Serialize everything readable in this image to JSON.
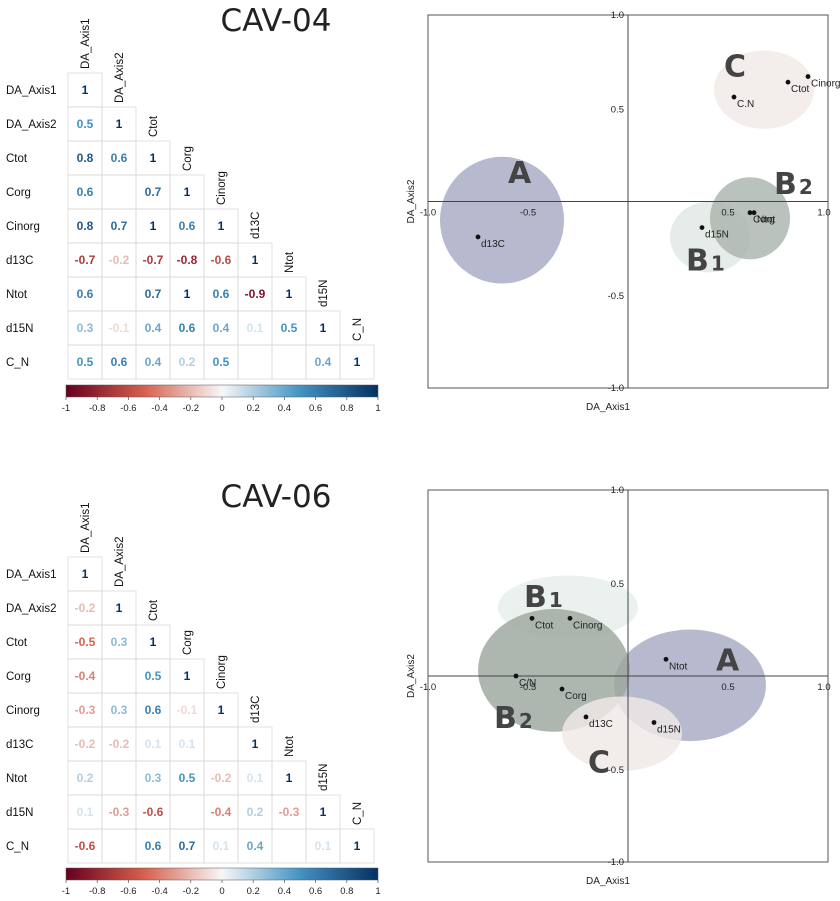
{
  "titles": {
    "top": "CAV-04",
    "bottom": "CAV-06"
  },
  "chart_data": [
    {
      "type": "heatmap",
      "title": "CAV-04",
      "variables": [
        "DA_Axis1",
        "DA_Axis2",
        "Ctot",
        "Corg",
        "Cinorg",
        "d13C",
        "Ntot",
        "d15N",
        "C_N"
      ],
      "matrix": [
        [
          1
        ],
        [
          0.5,
          1
        ],
        [
          0.8,
          0.6,
          1
        ],
        [
          0.6,
          null,
          0.7,
          1
        ],
        [
          0.8,
          0.7,
          1,
          0.6,
          1
        ],
        [
          -0.7,
          -0.2,
          -0.7,
          -0.8,
          -0.6,
          1
        ],
        [
          0.6,
          null,
          0.7,
          1,
          0.6,
          -0.9,
          1
        ],
        [
          0.3,
          -0.1,
          0.4,
          0.6,
          0.4,
          0.1,
          0.5,
          1
        ],
        [
          0.5,
          0.6,
          0.4,
          0.2,
          0.5,
          null,
          null,
          0.4,
          1
        ]
      ],
      "colorbar": {
        "range": [
          -1,
          1
        ],
        "ticks": [
          "-1",
          "-0.8",
          "-0.6",
          "-0.4",
          "-0.2",
          "0",
          "0.2",
          "0.4",
          "0.6",
          "0.8",
          "1"
        ]
      },
      "colors": {
        "negative": "#67001f",
        "neutral": "#f7f7f7",
        "positive": "#053061"
      }
    },
    {
      "type": "scatter",
      "title": "CAV-04",
      "xlabel": "DA_Axis1",
      "ylabel": "DA_Axis2",
      "xlim": [
        -1.0,
        1.0
      ],
      "ylim": [
        -1.0,
        1.0
      ],
      "x_ticks": [
        "-1.0",
        "-0.5",
        "0.5",
        "1.0"
      ],
      "y_ticks": [
        "1.0",
        "0.5",
        "-0.5",
        "-1.0"
      ],
      "points": [
        {
          "label": "d13C",
          "x": -0.75,
          "y": -0.19
        },
        {
          "label": "d15N",
          "x": 0.37,
          "y": -0.14
        },
        {
          "label": "Corg",
          "x": 0.61,
          "y": -0.06
        },
        {
          "label": "Ntot",
          "x": 0.63,
          "y": -0.06
        },
        {
          "label": "C.N",
          "x": 0.53,
          "y": 0.56
        },
        {
          "label": "Ctot",
          "x": 0.8,
          "y": 0.64
        },
        {
          "label": "Cinorg",
          "x": 0.9,
          "y": 0.67
        }
      ],
      "groups": [
        {
          "label": "A",
          "cx": -0.63,
          "cy": -0.1,
          "rx": 0.31,
          "ry": 0.34,
          "color": "#a7a9c3"
        },
        {
          "label": "B",
          "sub": "1",
          "cx": 0.41,
          "cy": -0.19,
          "rx": 0.2,
          "ry": 0.19,
          "color": "#e0e8e5"
        },
        {
          "label": "B",
          "sub": "2",
          "cx": 0.61,
          "cy": -0.09,
          "rx": 0.2,
          "ry": 0.22,
          "color": "#aab5ad"
        },
        {
          "label": "C",
          "cx": 0.68,
          "cy": 0.6,
          "rx": 0.25,
          "ry": 0.21,
          "color": "#f0eae7"
        }
      ]
    },
    {
      "type": "heatmap",
      "title": "CAV-06",
      "variables": [
        "DA_Axis1",
        "DA_Axis2",
        "Ctot",
        "Corg",
        "Cinorg",
        "d13C",
        "Ntot",
        "d15N",
        "C_N"
      ],
      "matrix": [
        [
          1
        ],
        [
          -0.2,
          1
        ],
        [
          -0.5,
          0.3,
          1
        ],
        [
          -0.4,
          null,
          0.5,
          1
        ],
        [
          -0.3,
          0.3,
          0.6,
          -0.1,
          1
        ],
        [
          -0.2,
          -0.2,
          0.1,
          0.1,
          null,
          1
        ],
        [
          0.2,
          null,
          0.3,
          0.5,
          -0.2,
          0.1,
          1
        ],
        [
          0.1,
          -0.3,
          -0.6,
          null,
          -0.4,
          0.2,
          -0.3,
          1
        ],
        [
          -0.6,
          null,
          0.6,
          0.7,
          0.1,
          0.4,
          null,
          0.1,
          1
        ]
      ],
      "colorbar": {
        "range": [
          -1,
          1
        ],
        "ticks": [
          "-1",
          "-0.8",
          "-0.6",
          "-0.4",
          "-0.2",
          "0",
          "0.2",
          "0.4",
          "0.6",
          "0.8",
          "1"
        ]
      },
      "colors": {
        "negative": "#67001f",
        "neutral": "#f7f7f7",
        "positive": "#053061"
      }
    },
    {
      "type": "scatter",
      "title": "CAV-06",
      "xlabel": "DA_Axis1",
      "ylabel": "DA_Axis2",
      "xlim": [
        -1.0,
        1.0
      ],
      "ylim": [
        -1.0,
        1.0
      ],
      "x_ticks": [
        "-1.0",
        "-0.5",
        "0.5",
        "1.0"
      ],
      "y_ticks": [
        "1.0",
        "0.5",
        "-0.5",
        "-1.0"
      ],
      "points": [
        {
          "label": "Ctot",
          "x": -0.48,
          "y": 0.31
        },
        {
          "label": "Cinorg",
          "x": -0.29,
          "y": 0.31
        },
        {
          "label": "Ntot",
          "x": 0.19,
          "y": 0.09
        },
        {
          "label": "C/N",
          "x": -0.56,
          "y": 0.0
        },
        {
          "label": "Corg",
          "x": -0.33,
          "y": -0.07
        },
        {
          "label": "d13C",
          "x": -0.21,
          "y": -0.22
        },
        {
          "label": "d15N",
          "x": 0.13,
          "y": -0.25
        }
      ],
      "groups": [
        {
          "label": "A",
          "cx": 0.31,
          "cy": -0.05,
          "rx": 0.38,
          "ry": 0.3,
          "color": "#a7a9c3"
        },
        {
          "label": "B",
          "sub": "1",
          "cx": -0.3,
          "cy": 0.37,
          "rx": 0.35,
          "ry": 0.17,
          "color": "#e7eeea"
        },
        {
          "label": "B",
          "sub": "2",
          "cx": -0.37,
          "cy": 0.03,
          "rx": 0.38,
          "ry": 0.33,
          "color": "#9ca79e"
        },
        {
          "label": "C",
          "cx": -0.03,
          "cy": -0.31,
          "rx": 0.3,
          "ry": 0.2,
          "color": "#efe9e7"
        }
      ]
    }
  ]
}
